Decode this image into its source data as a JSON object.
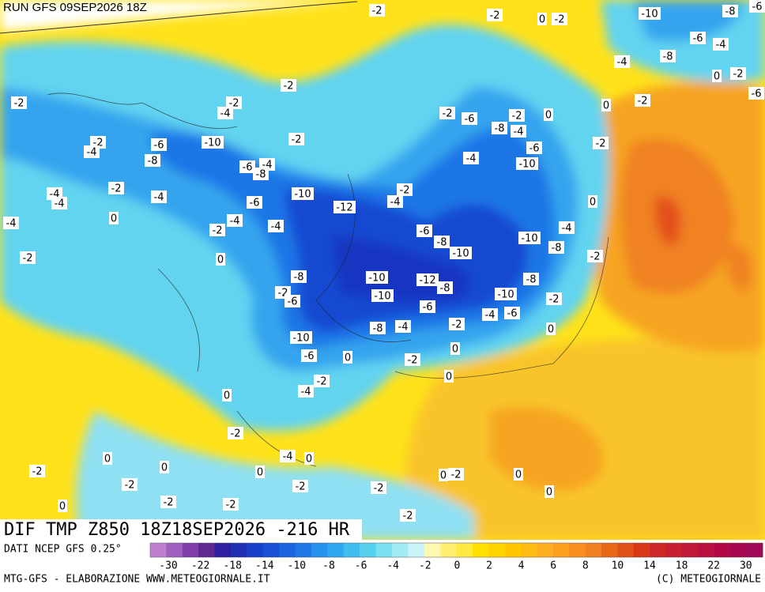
{
  "header": {
    "run": "RUN GFS 09SEP2026 18Z"
  },
  "map": {
    "title": "DIF TMP Z850 18Z18SEP2026 -216 HR",
    "contour_labels": [
      "-2",
      "-2",
      "0",
      "-2",
      "-10",
      "-8",
      "-6",
      "-6",
      "-4",
      "-4",
      "-8",
      "0",
      "-2",
      "-6",
      "-2",
      "0",
      "-2",
      "-2",
      "-2",
      "-4",
      "-2",
      "-6",
      "-2",
      "0",
      "-8",
      "-4",
      "-2",
      "-2",
      "-4",
      "-6",
      "-10",
      "-8",
      "-6",
      "-2",
      "-4",
      "-10",
      "-6",
      "-4",
      "-8",
      "-2",
      "-4",
      "-4",
      "-4",
      "-4",
      "-6",
      "-10",
      "-2",
      "-4",
      "0",
      "-12",
      "0",
      "-4",
      "-2",
      "-4",
      "-6",
      "-4",
      "-10",
      "-8",
      "-10",
      "-8",
      "-2",
      "-2",
      "0",
      "-8",
      "-10",
      "-12",
      "-8",
      "-8",
      "-2",
      "-6",
      "-10",
      "-10",
      "-2",
      "-6",
      "-4",
      "-6",
      "-8",
      "-4",
      "-2",
      "0",
      "-10",
      "0",
      "-6",
      "0",
      "-2",
      "0",
      "-2",
      "-4",
      "0",
      "-2",
      "0",
      "-4",
      "0",
      "0",
      "-2",
      "0",
      "0",
      "-2",
      "0",
      "-2",
      "-2",
      "-2",
      "0",
      "-2",
      "-2",
      "0",
      "-2"
    ]
  },
  "legend": {
    "source": "DATI NCEP GFS 0.25°",
    "ticks": [
      "-30",
      "-22",
      "-18",
      "-14",
      "-10",
      "-8",
      "-6",
      "-4",
      "-2",
      "0",
      "2",
      "4",
      "6",
      "8",
      "10",
      "14",
      "18",
      "22",
      "30"
    ]
  },
  "footer": {
    "credit": "MTG-GFS - ELABORAZIONE WWW.METEOGIORNALE.IT",
    "copyright": "(C) METEOGIORNALE"
  }
}
